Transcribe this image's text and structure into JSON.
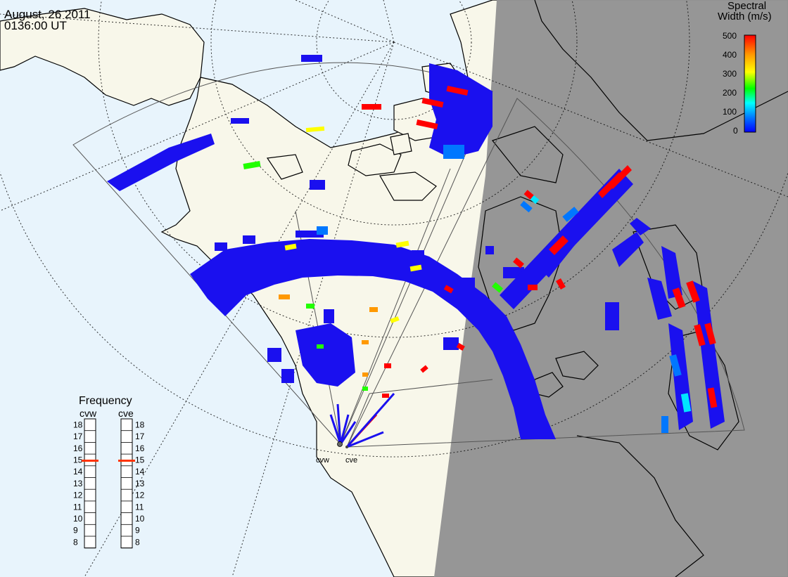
{
  "title": {
    "date": "August, 26 2011",
    "time": "0136:00 UT"
  },
  "colorbar": {
    "title_line1": "Spectral",
    "title_line2": "Width (m/s)",
    "ticks": [
      "500",
      "400",
      "300",
      "200",
      "100",
      "0"
    ],
    "gradient": [
      "#0000ff",
      "#0077ff",
      "#00ffff",
      "#00ff00",
      "#ffff00",
      "#ff9900",
      "#ff0000"
    ]
  },
  "frequency_panel": {
    "title": "Frequency",
    "radars": [
      "cvw",
      "cve"
    ],
    "scale": [
      "18",
      "17",
      "16",
      "15",
      "14",
      "13",
      "12",
      "11",
      "10",
      "9",
      "8"
    ],
    "current_mhz": 15,
    "marker_color": "#ff3300"
  },
  "radar_sites": [
    "cvw",
    "cve"
  ],
  "colors": {
    "ocean": "#e8f4fc",
    "land": "#f8f7ea",
    "night": "#939393",
    "scatter_low": "#1a10ef",
    "scatter_high": "#ff0000"
  }
}
